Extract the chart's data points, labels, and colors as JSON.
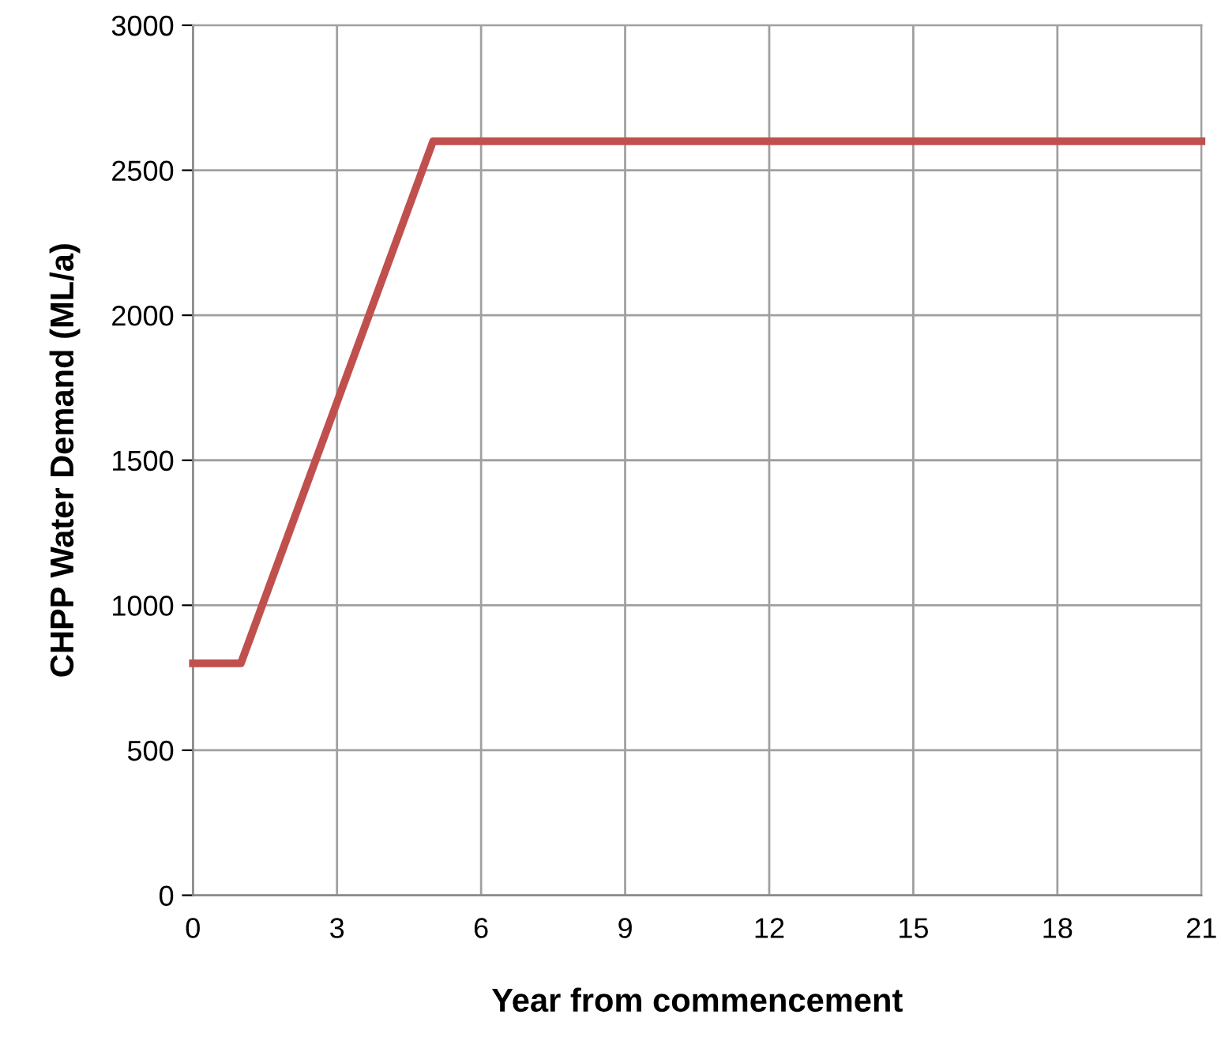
{
  "chart_data": {
    "type": "line",
    "xlabel": "Year from commencement",
    "ylabel": "CHPP Water Demand (ML/a)",
    "x": [
      0,
      1,
      5,
      21
    ],
    "series": [
      {
        "color": "#c0504d",
        "values": [
          800,
          800,
          2600,
          2600
        ]
      }
    ],
    "xlim": [
      0,
      21
    ],
    "xticks": [
      0,
      3,
      6,
      9,
      12,
      15,
      18,
      21
    ],
    "ylim": [
      0,
      3000
    ],
    "yticks": [
      0,
      500,
      1000,
      1500,
      2000,
      2500,
      3000
    ],
    "grid": true,
    "marker": "none",
    "line_style": "solid"
  }
}
